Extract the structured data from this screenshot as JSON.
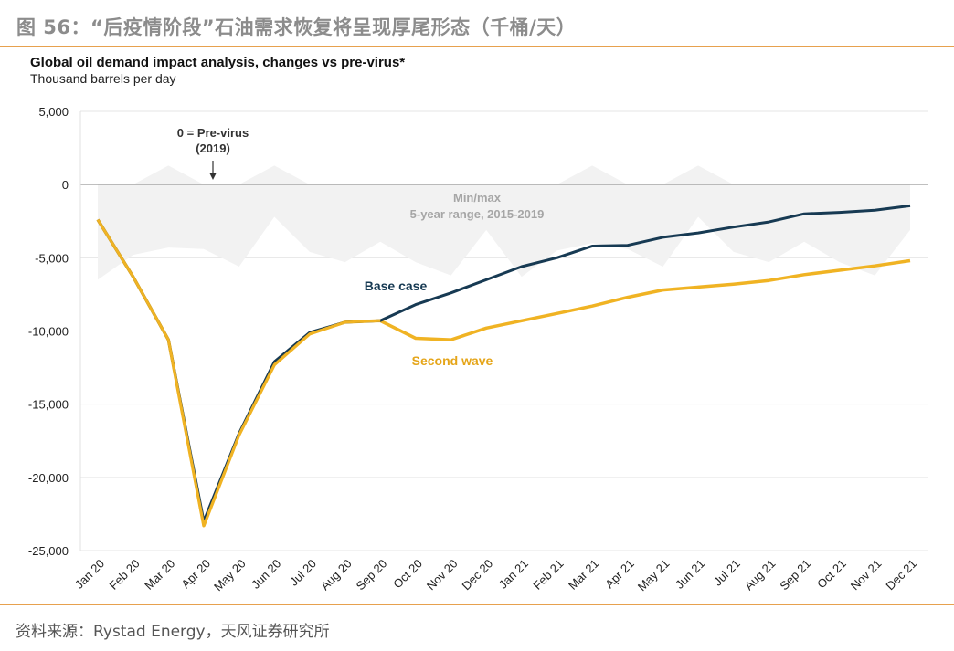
{
  "figure_title": "图 56：“后疫情阶段”石油需求恢复将呈现厚尾形态（千桶/天）",
  "source": "资料来源：Rystad Energy，天风证券研究所",
  "chart_data": {
    "type": "line",
    "title": "Global oil demand impact analysis, changes vs pre-virus*",
    "subtitle": "Thousand barrels per day",
    "xlabel": "",
    "ylabel": "",
    "ylim": [
      -25000,
      5000
    ],
    "yticks": [
      5000,
      0,
      -5000,
      -10000,
      -15000,
      -20000,
      -25000
    ],
    "ytick_labels": [
      "5,000",
      "0",
      "-5,000",
      "-10,000",
      "-15,000",
      "-20,000",
      "-25,000"
    ],
    "grid": true,
    "categories": [
      "Jan 20",
      "Feb 20",
      "Mar 20",
      "Apr 20",
      "May 20",
      "Jun 20",
      "Jul 20",
      "Aug 20",
      "Sep 20",
      "Oct 20",
      "Nov 20",
      "Dec 20",
      "Jan 21",
      "Feb 21",
      "Mar 21",
      "Apr 21",
      "May 21",
      "Jun 21",
      "Jul 21",
      "Aug 21",
      "Sep 21",
      "Oct 21",
      "Nov 21",
      "Dec 21"
    ],
    "band": {
      "upper": [
        0,
        0,
        1300,
        0,
        0,
        1300,
        0,
        0,
        0,
        0,
        0,
        0,
        0,
        0,
        1300,
        0,
        0,
        1300,
        0,
        0,
        0,
        0,
        0,
        0
      ],
      "lower": [
        -6500,
        -4800,
        -4300,
        -4400,
        -5600,
        -2200,
        -4600,
        -5300,
        -3900,
        -5300,
        -6200,
        -3100,
        -6300,
        -4500,
        -4000,
        -4400,
        -5600,
        -2200,
        -4600,
        -5300,
        -3900,
        -5300,
        -6200,
        -3100
      ]
    },
    "series": [
      {
        "name": "Base case",
        "color": "#173a53",
        "values": [
          -2400,
          -6300,
          -10600,
          -23000,
          -17000,
          -12100,
          -10100,
          -9400,
          -9300,
          -8200,
          -7400,
          -6500,
          -5600,
          -5000,
          -4200,
          -4150,
          -3600,
          -3300,
          -2900,
          -2550,
          -2000,
          -1900,
          -1750,
          -1450
        ]
      },
      {
        "name": "Second wave",
        "color": "#f0b323",
        "values": [
          -2400,
          -6300,
          -10600,
          -23300,
          -17100,
          -12300,
          -10200,
          -9400,
          -9300,
          -10500,
          -10600,
          -9800,
          -9300,
          -8800,
          -8300,
          -7700,
          -7200,
          -7000,
          -6800,
          -6550,
          -6150,
          -5850,
          -5550,
          -5200
        ]
      }
    ],
    "annotations": [
      {
        "name": "pre-virus",
        "text_lines": [
          "0 = Pre-virus",
          "(2019)"
        ]
      },
      {
        "name": "range",
        "text_lines": [
          "Min/max",
          "5-year range, 2015-2019"
        ]
      },
      {
        "name": "base-case",
        "text_lines": [
          "Base case"
        ]
      },
      {
        "name": "second-wave",
        "text_lines": [
          "Second wave"
        ]
      }
    ],
    "colors": {
      "band": "#f2f2f2",
      "grid": "#e6e6e6",
      "axis": "#999999",
      "range_text": "#a6a6a6"
    }
  }
}
